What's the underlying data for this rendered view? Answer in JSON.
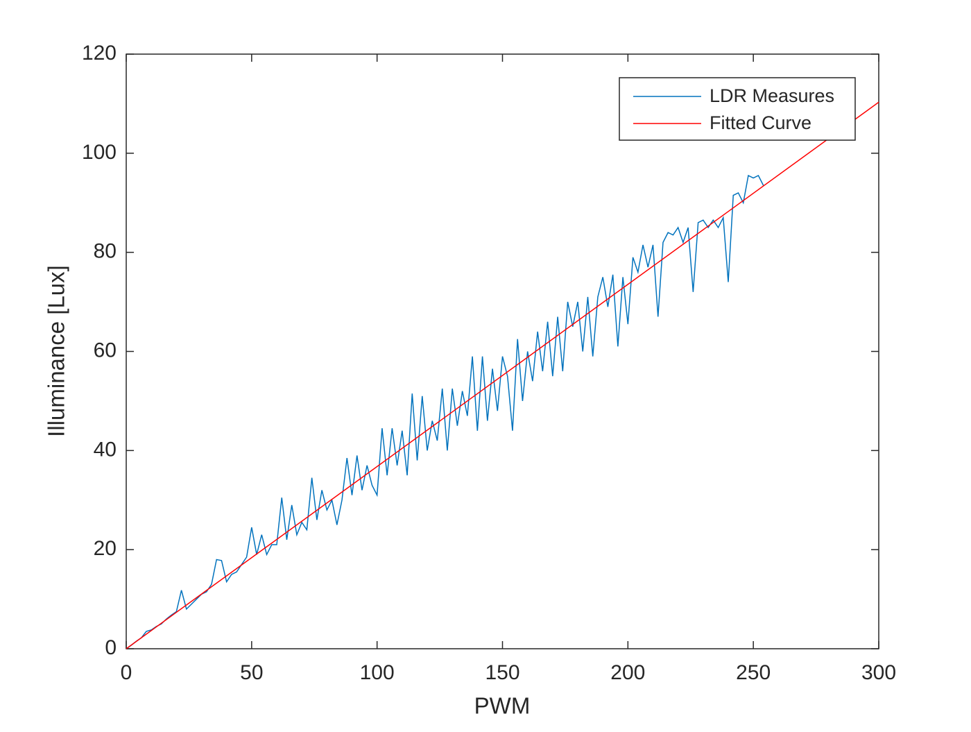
{
  "chart_data": {
    "type": "line",
    "xlabel": "PWM",
    "ylabel": "Illuminance [Lux]",
    "xlim": [
      0,
      300
    ],
    "ylim": [
      0,
      120
    ],
    "xticks": [
      0,
      50,
      100,
      150,
      200,
      250,
      300
    ],
    "yticks": [
      0,
      20,
      40,
      60,
      80,
      100,
      120
    ],
    "grid": false,
    "legend": "top-right",
    "series": [
      {
        "name": "LDR Measures",
        "color": "#0072bd",
        "x": [
          0,
          2,
          4,
          6,
          8,
          10,
          12,
          14,
          16,
          18,
          20,
          22,
          24,
          26,
          28,
          30,
          32,
          34,
          36,
          38,
          40,
          42,
          44,
          46,
          48,
          50,
          52,
          54,
          56,
          58,
          60,
          62,
          64,
          66,
          68,
          70,
          72,
          74,
          76,
          78,
          80,
          82,
          84,
          86,
          88,
          90,
          92,
          94,
          96,
          98,
          100,
          102,
          104,
          106,
          108,
          110,
          112,
          114,
          116,
          118,
          120,
          122,
          124,
          126,
          128,
          130,
          132,
          134,
          136,
          138,
          140,
          142,
          144,
          146,
          148,
          150,
          152,
          154,
          156,
          158,
          160,
          162,
          164,
          166,
          168,
          170,
          172,
          174,
          176,
          178,
          180,
          182,
          184,
          186,
          188,
          190,
          192,
          194,
          196,
          198,
          200,
          202,
          204,
          206,
          208,
          210,
          212,
          214,
          216,
          218,
          220,
          222,
          224,
          226,
          228,
          230,
          232,
          234,
          236,
          238,
          240,
          242,
          244,
          246,
          248,
          250,
          252,
          254
        ],
        "values": [
          0,
          0.7,
          1.5,
          2.2,
          3.5,
          3.8,
          4.5,
          5,
          6,
          6.8,
          7.5,
          11.8,
          8,
          9,
          10,
          11,
          11.5,
          13,
          18,
          17.8,
          13.5,
          15,
          15.5,
          17,
          18.5,
          24.5,
          19,
          23,
          19,
          21,
          21,
          30.5,
          22,
          29,
          23,
          25.5,
          24,
          34.5,
          26,
          32,
          28,
          30,
          25,
          30,
          38.5,
          31,
          39,
          32,
          37,
          33,
          31,
          44.5,
          35,
          44.5,
          37,
          44,
          35,
          51.5,
          38,
          51,
          40,
          46,
          42,
          52.5,
          40,
          52.5,
          45,
          52,
          47,
          59,
          44,
          59,
          46,
          56.5,
          48,
          59,
          55,
          44,
          62.5,
          50,
          60,
          54,
          64,
          56,
          66,
          55,
          67,
          56,
          70,
          65,
          70,
          60,
          71,
          59,
          71,
          75,
          69,
          75.5,
          61,
          75,
          65.5,
          79,
          76,
          81.5,
          77,
          81.5,
          67,
          82,
          84,
          83.5,
          85,
          82,
          85,
          72,
          86,
          86.5,
          85,
          86.5,
          85,
          87,
          74,
          91.5,
          92,
          90,
          95.5,
          95,
          95.5,
          93.5
        ]
      },
      {
        "name": "Fitted Curve",
        "color": "#ff0000",
        "x": [
          0,
          300
        ],
        "values": [
          0,
          110.3
        ]
      }
    ]
  }
}
